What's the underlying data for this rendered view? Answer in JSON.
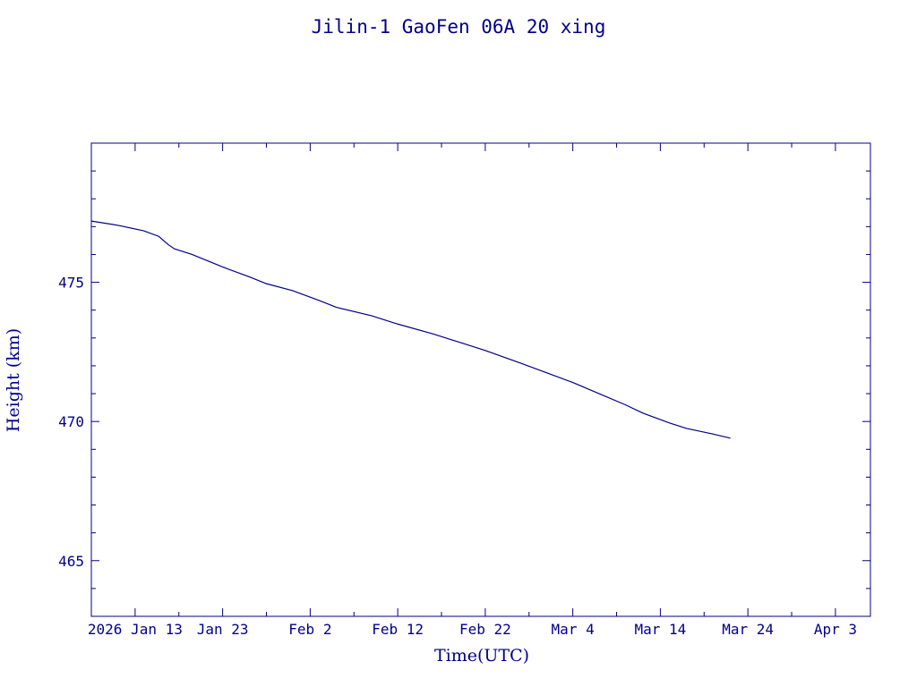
{
  "colors": {
    "ink": "#00008B",
    "background": "#ffffff"
  },
  "chart_data": {
    "type": "line",
    "title": "Jilin-1 GaoFen 06A 20 xing",
    "xlabel": "Time(UTC)",
    "ylabel": "Height (km)",
    "x_unit": "date",
    "xlim": [
      "2026-01-08",
      "2026-04-07"
    ],
    "ylim": [
      463.0,
      480.0
    ],
    "grid": false,
    "x_tick_labels": [
      {
        "date": "2026-01-13",
        "label": "2026 Jan 13"
      },
      {
        "date": "2026-01-23",
        "label": "Jan 23"
      },
      {
        "date": "2026-02-02",
        "label": "Feb  2"
      },
      {
        "date": "2026-02-12",
        "label": "Feb 12"
      },
      {
        "date": "2026-02-22",
        "label": "Feb 22"
      },
      {
        "date": "2026-03-04",
        "label": "Mar  4"
      },
      {
        "date": "2026-03-14",
        "label": "Mar 14"
      },
      {
        "date": "2026-03-24",
        "label": "Mar 24"
      },
      {
        "date": "2026-04-03",
        "label": "Apr  3"
      }
    ],
    "x_minor_tick_dates": [
      "2026-01-18",
      "2026-01-28",
      "2026-02-07",
      "2026-02-17",
      "2026-02-27",
      "2026-03-09",
      "2026-03-19",
      "2026-03-29"
    ],
    "y_ticks": [
      465,
      470,
      475
    ],
    "y_tick_labels": [
      "465",
      "470",
      "475"
    ],
    "y_minor_ticks": [
      464,
      466,
      467,
      468,
      469,
      471,
      472,
      473,
      474,
      476,
      477,
      478,
      479
    ],
    "series": [
      {
        "points": [
          [
            "2026-01-08",
            477.2
          ],
          [
            "2026-01-11",
            477.05
          ],
          [
            "2026-01-14",
            476.85
          ],
          [
            "2026-01-15.7",
            476.65
          ],
          [
            "2026-01-16.8",
            476.35
          ],
          [
            "2026-01-17.5",
            476.2
          ],
          [
            "2026-01-19.5",
            476.0
          ],
          [
            "2026-01-23",
            475.55
          ],
          [
            "2026-01-26",
            475.2
          ],
          [
            "2026-01-28",
            474.95
          ],
          [
            "2026-01-31",
            474.7
          ],
          [
            "2026-02-03",
            474.35
          ],
          [
            "2026-02-05",
            474.1
          ],
          [
            "2026-02-09",
            473.8
          ],
          [
            "2026-02-12",
            473.5
          ],
          [
            "2026-02-16",
            473.15
          ],
          [
            "2026-02-19",
            472.85
          ],
          [
            "2026-02-22",
            472.55
          ],
          [
            "2026-02-26",
            472.1
          ],
          [
            "2026-03-01",
            471.75
          ],
          [
            "2026-03-04",
            471.4
          ],
          [
            "2026-03-07",
            471.0
          ],
          [
            "2026-03-10",
            470.6
          ],
          [
            "2026-03-12",
            470.3
          ],
          [
            "2026-03-15",
            469.95
          ],
          [
            "2026-03-17",
            469.75
          ],
          [
            "2026-03-20",
            469.55
          ],
          [
            "2026-03-22",
            469.4
          ]
        ]
      }
    ]
  }
}
